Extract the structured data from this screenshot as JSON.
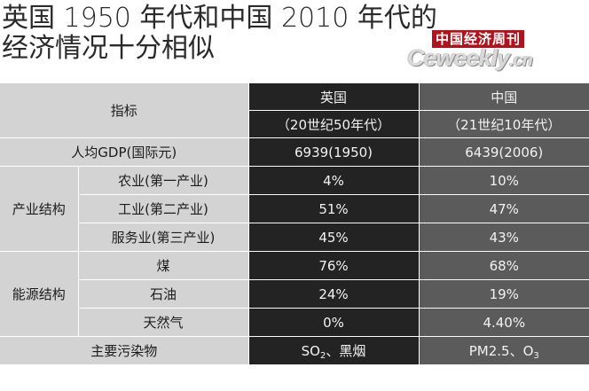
{
  "title": {
    "line1": "英国 1950 年代和中国 2010 年代的",
    "line2": "经济情况十分相似"
  },
  "logo": {
    "cn": "中国经济周刊",
    "en_main": "Ceweekly",
    "en_tld": ".cn"
  },
  "table": {
    "header": {
      "indicator": "指标",
      "uk_name": "英国",
      "uk_period": "（20世纪50年代）",
      "cn_name": "中国",
      "cn_period": "（21世纪10年代）"
    },
    "gdp": {
      "label": "人均GDP(国际元)",
      "uk": "6939(1950)",
      "cn": "6439(2006)"
    },
    "industry": {
      "group": "产业结构",
      "rows": [
        {
          "label": "农业(第一产业)",
          "uk": "4%",
          "cn": "10%"
        },
        {
          "label": "工业(第二产业)",
          "uk": "51%",
          "cn": "47%"
        },
        {
          "label": "服务业(第三产业)",
          "uk": "45%",
          "cn": "43%"
        }
      ]
    },
    "energy": {
      "group": "能源结构",
      "rows": [
        {
          "label": "煤",
          "uk": "76%",
          "cn": "68%"
        },
        {
          "label": "石油",
          "uk": "24%",
          "cn": "19%"
        },
        {
          "label": "天然气",
          "uk": "0%",
          "cn": "4.40%"
        }
      ]
    },
    "pollutant": {
      "label": "主要污染物",
      "uk_a": "SO",
      "uk_sub": "2",
      "uk_b": "、黑烟",
      "cn_a": "PM2.5、O",
      "cn_sub": "3"
    }
  }
}
